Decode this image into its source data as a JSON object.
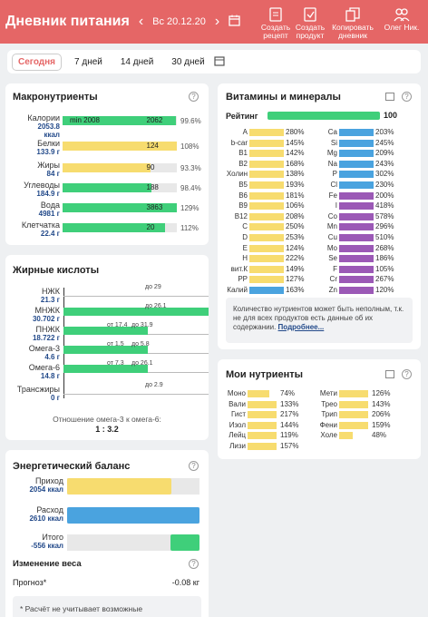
{
  "header": {
    "title": "Дневник питания",
    "date": "Вс 20.12.20",
    "buttons": [
      {
        "line1": "Создать",
        "line2": "рецепт",
        "icon": "create-recipe-icon"
      },
      {
        "line1": "Создать",
        "line2": "продукт",
        "icon": "create-product-icon"
      },
      {
        "line1": "Копировать",
        "line2": "дневник",
        "icon": "copy-diary-icon"
      },
      {
        "line1": "Олег Ник.",
        "line2": "",
        "icon": "user-icon"
      }
    ]
  },
  "periods": [
    "Сегодня",
    "7 дней",
    "14 дней",
    "30 дней"
  ],
  "colors": {
    "accent": "#e56666",
    "green": "#3fcf7a",
    "yellow": "#f7dc6f",
    "blue": "#4aa3df",
    "purple": "#9b59b6"
  },
  "macros": {
    "title": "Макронутриенты",
    "rows": [
      {
        "name": "Калории",
        "value": "2053.8",
        "unit": "ккал",
        "pct": "99.6%",
        "level": 0.996,
        "color": "green",
        "min_label": "min 2008",
        "num": "2062"
      },
      {
        "name": "Белки",
        "value": "133.9 г",
        "unit": "",
        "pct": "108%",
        "level": 1.0,
        "color": "yellow",
        "min_label": "",
        "num": "124"
      },
      {
        "name": "Жиры",
        "value": "84 г",
        "unit": "",
        "pct": "93.3%",
        "level": 0.77,
        "color": "yellow",
        "min_label": "",
        "num": "90"
      },
      {
        "name": "Углеводы",
        "value": "184.9 г",
        "unit": "",
        "pct": "98.4%",
        "level": 0.78,
        "color": "green",
        "min_label": "",
        "num": "188"
      },
      {
        "name": "Вода",
        "value": "4981 г",
        "unit": "",
        "pct": "129%",
        "level": 1.0,
        "color": "green",
        "min_label": "",
        "num": "3863"
      },
      {
        "name": "Клетчатка",
        "value": "22.4 г",
        "unit": "",
        "pct": "112%",
        "level": 0.9,
        "color": "green",
        "min_label": "",
        "num": "20"
      }
    ]
  },
  "fatty": {
    "title": "Жирные кислоты",
    "rows": [
      {
        "name": "НЖК",
        "value": "21.3 г",
        "level": 0.0,
        "from": "",
        "to": "до 29"
      },
      {
        "name": "МНЖК",
        "value": "30.702 г",
        "level": 1.0,
        "from": "",
        "to": "до 26.1"
      },
      {
        "name": "ПНЖК",
        "value": "18.722 г",
        "level": 0.58,
        "from": "от 17.4",
        "to": "до 31.9"
      },
      {
        "name": "Омега-3",
        "value": "4.6 г",
        "level": 0.58,
        "from": "от 1.5",
        "to": "до 5.8"
      },
      {
        "name": "Омега-6",
        "value": "14.8 г",
        "level": 0.58,
        "from": "от 7.3",
        "to": "до 26.1"
      },
      {
        "name": "Трансжиры",
        "value": "0 г",
        "level": 0.0,
        "from": "",
        "to": "до 2.9"
      }
    ],
    "ratio_label": "Отношение омега-3 к омега-6:",
    "ratio": "1 : 3.2"
  },
  "energy": {
    "title": "Энергетический баланс",
    "rows": [
      {
        "name": "Приход",
        "value": "2054 ккал",
        "level": 0.79,
        "color": "yellow"
      },
      {
        "name": "Расход",
        "value": "2610 ккал",
        "level": 1.0,
        "color": "blue"
      },
      {
        "name": "Итого",
        "value": "-556 ккал",
        "level": 0.22,
        "color": "green"
      }
    ],
    "weight_title": "Изменение веса",
    "forecast_label": "Прогноз*",
    "forecast_value": "-0.08 кг",
    "note": "* Расчёт не учитывает возможные"
  },
  "vitamins": {
    "title": "Витамины и минералы",
    "rating_label": "Рейтинг",
    "rating": "100",
    "left": [
      {
        "name": "A",
        "pct": "280%",
        "color": "yellow"
      },
      {
        "name": "b-car",
        "pct": "145%",
        "color": "yellow"
      },
      {
        "name": "B1",
        "pct": "142%",
        "color": "yellow"
      },
      {
        "name": "B2",
        "pct": "168%",
        "color": "yellow"
      },
      {
        "name": "Холин",
        "pct": "138%",
        "color": "yellow"
      },
      {
        "name": "B5",
        "pct": "193%",
        "color": "yellow"
      },
      {
        "name": "B6",
        "pct": "181%",
        "color": "yellow"
      },
      {
        "name": "B9",
        "pct": "106%",
        "color": "yellow"
      },
      {
        "name": "B12",
        "pct": "208%",
        "color": "yellow"
      },
      {
        "name": "C",
        "pct": "250%",
        "color": "yellow"
      },
      {
        "name": "D",
        "pct": "253%",
        "color": "yellow"
      },
      {
        "name": "E",
        "pct": "124%",
        "color": "yellow"
      },
      {
        "name": "H",
        "pct": "222%",
        "color": "yellow"
      },
      {
        "name": "вит.К",
        "pct": "149%",
        "color": "yellow"
      },
      {
        "name": "PP",
        "pct": "127%",
        "color": "yellow"
      },
      {
        "name": "Калий",
        "pct": "163%",
        "color": "blue"
      }
    ],
    "right": [
      {
        "name": "Ca",
        "pct": "203%",
        "color": "blue"
      },
      {
        "name": "Si",
        "pct": "245%",
        "color": "blue"
      },
      {
        "name": "Mg",
        "pct": "209%",
        "color": "blue"
      },
      {
        "name": "Na",
        "pct": "243%",
        "color": "blue"
      },
      {
        "name": "P",
        "pct": "302%",
        "color": "blue"
      },
      {
        "name": "Cl",
        "pct": "230%",
        "color": "blue"
      },
      {
        "name": "Fe",
        "pct": "200%",
        "color": "purple"
      },
      {
        "name": "I",
        "pct": "418%",
        "color": "purple"
      },
      {
        "name": "Co",
        "pct": "578%",
        "color": "purple"
      },
      {
        "name": "Mn",
        "pct": "296%",
        "color": "purple"
      },
      {
        "name": "Cu",
        "pct": "510%",
        "color": "purple"
      },
      {
        "name": "Mo",
        "pct": "268%",
        "color": "purple"
      },
      {
        "name": "Se",
        "pct": "186%",
        "color": "purple"
      },
      {
        "name": "F",
        "pct": "105%",
        "color": "purple"
      },
      {
        "name": "Cr",
        "pct": "267%",
        "color": "purple"
      },
      {
        "name": "Zn",
        "pct": "120%",
        "color": "purple"
      }
    ],
    "note": "Количество нутриентов может быть неполным, т.к. не для всех продуктов есть данные об их содержании.",
    "more": "Подробнее..."
  },
  "my": {
    "title": "Мои нутриенты",
    "left": [
      {
        "name": "Моно",
        "pct": "74%",
        "level": 0.74
      },
      {
        "name": "Вали",
        "pct": "133%",
        "level": 1.0
      },
      {
        "name": "Гист",
        "pct": "217%",
        "level": 1.0
      },
      {
        "name": "Изол",
        "pct": "144%",
        "level": 1.0
      },
      {
        "name": "Лейц",
        "pct": "119%",
        "level": 1.0
      },
      {
        "name": "Лизи",
        "pct": "157%",
        "level": 1.0
      }
    ],
    "right": [
      {
        "name": "Мети",
        "pct": "126%",
        "level": 1.0
      },
      {
        "name": "Трео",
        "pct": "143%",
        "level": 1.0
      },
      {
        "name": "Трип",
        "pct": "206%",
        "level": 1.0
      },
      {
        "name": "Фени",
        "pct": "159%",
        "level": 1.0
      },
      {
        "name": "Холе",
        "pct": "48%",
        "level": 0.48
      }
    ]
  }
}
